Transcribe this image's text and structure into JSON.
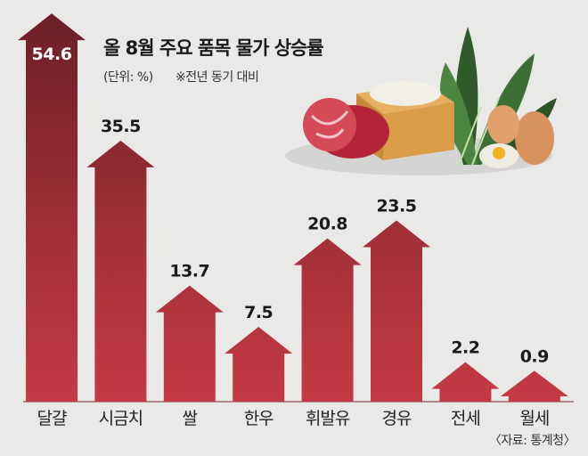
{
  "title": "올 8월 주요 품목 물가 상승률",
  "unit": "(단위: %)",
  "note": "※전년 동기 대비",
  "source": "〈자료: 통계청〉",
  "colors": {
    "top": "#6b1f26",
    "bottom": "#c53a44",
    "background": "#e9e9e8"
  },
  "chart_data": {
    "type": "bar",
    "title": "올 8월 주요 품목 물가 상승률",
    "ylabel": "(단위: %)",
    "categories": [
      "달걀",
      "시금치",
      "쌀",
      "한우",
      "휘발유",
      "경유",
      "전세",
      "월세"
    ],
    "values": [
      54.6,
      35.5,
      13.7,
      7.5,
      20.8,
      23.5,
      2.2,
      0.9
    ],
    "labels": [
      "54.6",
      "35.5",
      "13.7",
      "7.5",
      "20.8",
      "23.5",
      "2.2",
      "0.9"
    ],
    "ylim": [
      0,
      55
    ],
    "grid": false
  }
}
